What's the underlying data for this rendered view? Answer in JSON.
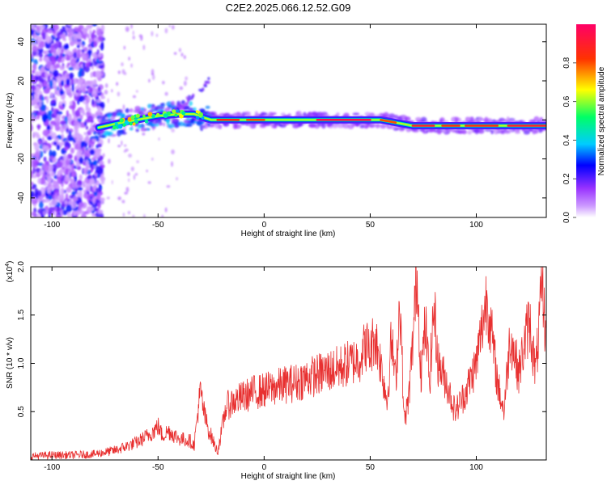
{
  "title": "C2E2.2025.066.12.52.G09",
  "chart_data": [
    {
      "type": "heatmap",
      "xlabel": "Height of straight line (km)",
      "ylabel": "Frequency (Hz)",
      "xlim": [
        -110,
        133
      ],
      "ylim": [
        -50,
        49
      ],
      "xticks": [
        -100,
        -50,
        0,
        50,
        100
      ],
      "yticks": [
        -40,
        -20,
        0,
        20,
        40
      ],
      "ridge": {
        "x": [
          -78,
          -70,
          -60,
          -50,
          -40,
          -33,
          -28,
          -25,
          -20,
          -10,
          0,
          10,
          20,
          30,
          40,
          50,
          55,
          60,
          65,
          70,
          80,
          90,
          100,
          110,
          120,
          133
        ],
        "y": [
          -4,
          -2,
          0,
          2,
          3,
          3,
          1,
          0,
          0,
          0,
          0,
          0,
          0,
          0,
          0,
          0,
          0,
          -1,
          -2,
          -3,
          -3,
          -3,
          -3,
          -3,
          -3,
          -3
        ]
      },
      "colorbar": {
        "label": "Normalized spectral amplitude",
        "ticks": [
          0.0,
          0.2,
          0.4,
          0.6,
          0.8
        ],
        "range": [
          0,
          1
        ],
        "colors": [
          "#ffffff",
          "#cc99ff",
          "#9933ff",
          "#0000ff",
          "#00ccff",
          "#00ff66",
          "#ffff00",
          "#ff3300",
          "#ff0066"
        ]
      }
    },
    {
      "type": "line",
      "xlabel": "Height of straight line (km)",
      "ylabel": "SNR (10 * v/v)",
      "yscale_label": "(x10",
      "yscale_exp": "4",
      "xlim": [
        -110,
        133
      ],
      "ylim": [
        0,
        2.0
      ],
      "xticks": [
        -100,
        -50,
        0,
        50,
        100
      ],
      "yticks": [
        0.5,
        1.0,
        1.5,
        2.0
      ],
      "line_color": "#e83030",
      "series": [
        {
          "x": [
            -110,
            -100,
            -90,
            -80,
            -75,
            -70,
            -65,
            -60,
            -55,
            -52,
            -50,
            -48,
            -45,
            -40,
            -35,
            -33,
            -31,
            -30,
            -28,
            -26,
            -25,
            -22,
            -20,
            -18,
            -15,
            -10,
            -5,
            0,
            5,
            10,
            15,
            20,
            25,
            30,
            35,
            40,
            45,
            48,
            50,
            52,
            55,
            58,
            60,
            62,
            64,
            66,
            68,
            70,
            72,
            74,
            76,
            78,
            80,
            82,
            84,
            86,
            90,
            95,
            100,
            105,
            110,
            113,
            116,
            120,
            125,
            128,
            131,
            133
          ],
          "y": [
            0.04,
            0.05,
            0.05,
            0.06,
            0.08,
            0.1,
            0.14,
            0.18,
            0.25,
            0.3,
            0.35,
            0.25,
            0.3,
            0.22,
            0.2,
            0.15,
            0.55,
            0.7,
            0.45,
            0.3,
            0.25,
            0.08,
            0.3,
            0.55,
            0.6,
            0.65,
            0.7,
            0.72,
            0.75,
            0.78,
            0.8,
            0.85,
            0.88,
            0.92,
            0.95,
            1.0,
            1.05,
            1.2,
            1.1,
            1.3,
            1.0,
            0.6,
            1.25,
            0.8,
            1.7,
            0.4,
            0.6,
            1.2,
            1.95,
            0.9,
            1.4,
            0.8,
            1.6,
            1.0,
            0.9,
            0.8,
            0.5,
            0.7,
            1.0,
            1.7,
            0.8,
            0.5,
            1.3,
            0.9,
            1.45,
            0.9,
            1.8,
            1.25
          ]
        }
      ]
    }
  ]
}
